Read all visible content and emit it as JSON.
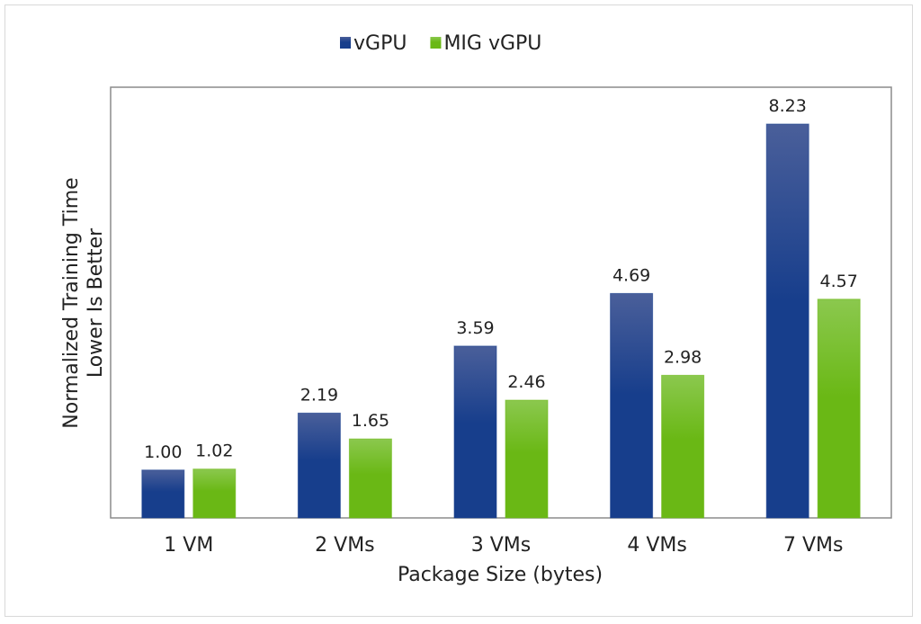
{
  "chart_data": {
    "type": "bar",
    "title": "",
    "xlabel": "Package Size (bytes)",
    "ylabel": "Normalized Training Time",
    "ylabel2": "Lower Is Better",
    "categories": [
      "1 VM",
      "2 VMs",
      "3 VMs",
      "4 VMs",
      "7 VMs"
    ],
    "series": [
      {
        "name": "vGPU",
        "values": [
          1.0,
          2.19,
          3.59,
          4.69,
          8.23
        ],
        "color": "#173e8c",
        "color_top": "#4a5f9a"
      },
      {
        "name": "MIG vGPU",
        "values": [
          1.02,
          1.65,
          2.46,
          2.98,
          4.57
        ],
        "color": "#6ab815",
        "color_top": "#8bc84e"
      }
    ],
    "ylim": [
      0,
      9
    ],
    "grid": false,
    "legend": "top-center",
    "data_labels": true,
    "y_ticks_shown": false
  }
}
